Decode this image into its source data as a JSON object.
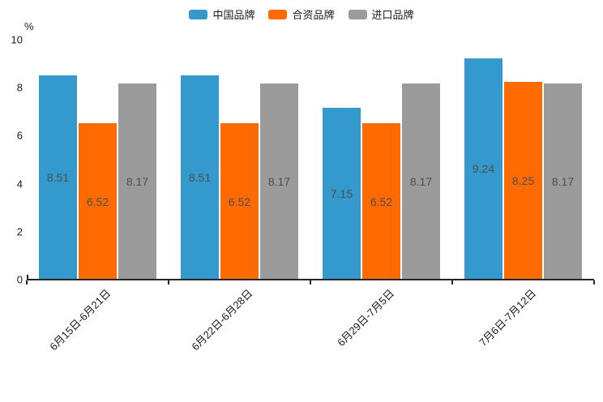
{
  "chart_data": {
    "type": "bar",
    "title": "",
    "ylabel": "%",
    "ylim": [
      0,
      10
    ],
    "yticks": [
      0,
      2,
      4,
      6,
      8,
      10
    ],
    "categories": [
      "6月15日-6月21日",
      "6月22日-6月28日",
      "6月29日-7月5日",
      "7月6日-7月12日"
    ],
    "series": [
      {
        "name": "中国品牌",
        "color": "#3499CC",
        "values": [
          8.51,
          8.51,
          7.15,
          9.24
        ]
      },
      {
        "name": "合资品牌",
        "color": "#FF6B00",
        "values": [
          6.52,
          6.52,
          6.52,
          8.25
        ]
      },
      {
        "name": "进口品牌",
        "color": "#9B9B9B",
        "values": [
          8.17,
          8.17,
          8.17,
          8.17
        ]
      }
    ],
    "legend_position": "top",
    "grid": false,
    "background": "#ffffff",
    "bar_label_color": "#4d4d4d",
    "axis_color": "#262626",
    "text_color": "#1a1a1a"
  }
}
